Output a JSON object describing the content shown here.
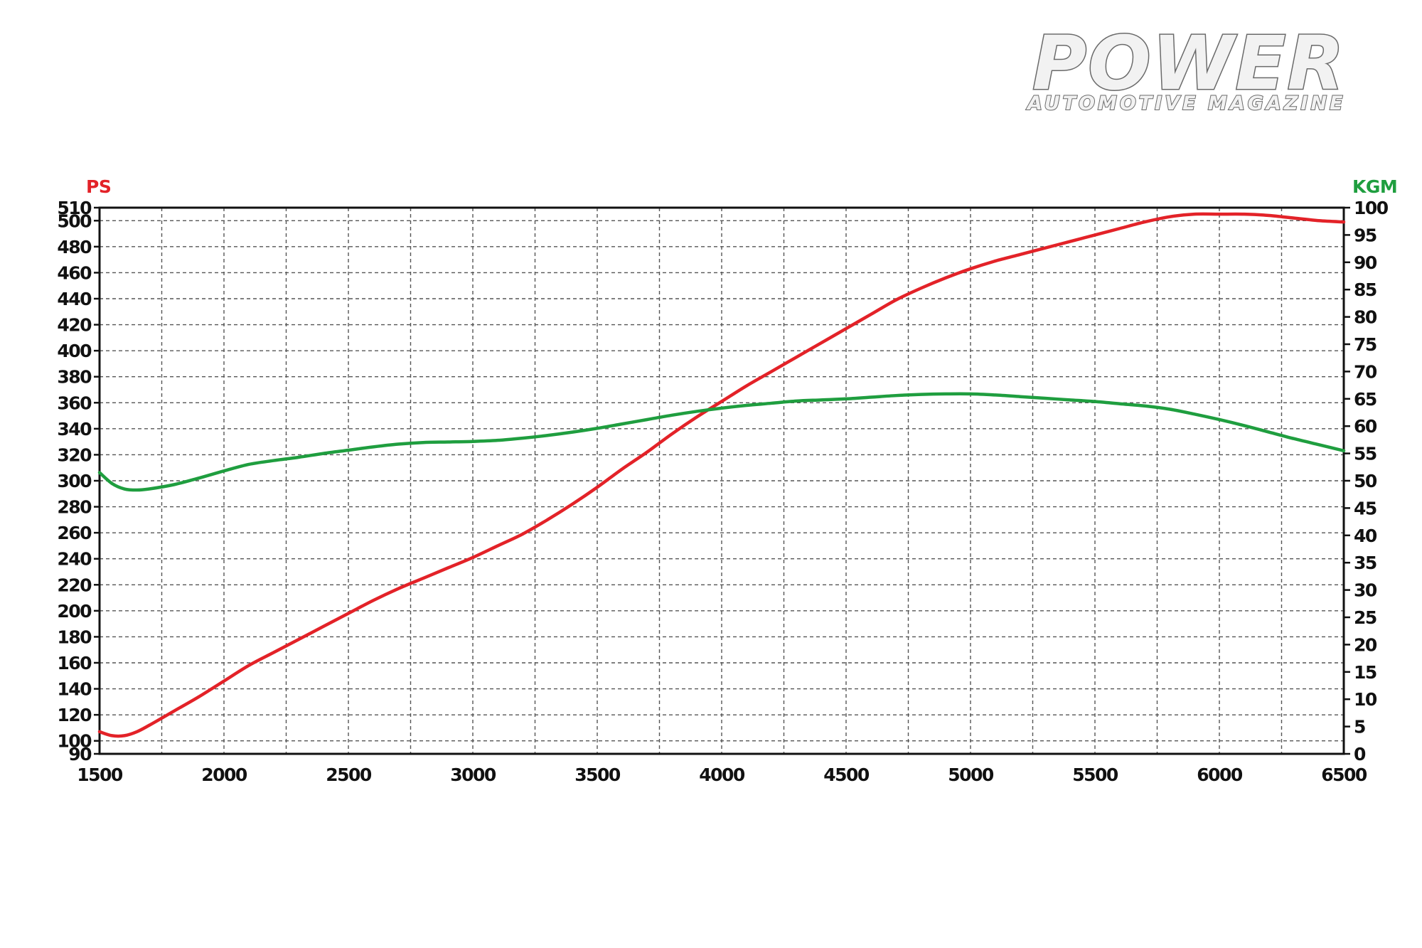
{
  "logo": {
    "name": "POWER",
    "tagline": "AUTOMOTIVE MAGAZINE"
  },
  "chart_data": {
    "type": "line",
    "title": "",
    "xlabel": "",
    "ylabel_left": "PS",
    "ylabel_right": "KGM",
    "xlim": [
      1500,
      6500
    ],
    "x_ticks": [
      1500,
      2000,
      2500,
      3000,
      3500,
      4000,
      4500,
      5000,
      5500,
      6000,
      6500
    ],
    "ylim_left": [
      90,
      510
    ],
    "y_ticks_left": [
      90,
      100,
      120,
      140,
      160,
      180,
      200,
      220,
      240,
      260,
      280,
      300,
      320,
      340,
      360,
      380,
      400,
      420,
      440,
      460,
      480,
      500,
      510
    ],
    "ylim_right": [
      0,
      100
    ],
    "y_ticks_right": [
      0,
      5,
      10,
      15,
      20,
      25,
      30,
      35,
      40,
      45,
      50,
      55,
      60,
      65,
      70,
      75,
      80,
      85,
      90,
      95,
      100
    ],
    "grid": true,
    "colors": {
      "ps": "#e32228",
      "kgm": "#1f9e3f",
      "grid": "#555555",
      "axis": "#111111"
    },
    "series": [
      {
        "axis": "left",
        "color": "#e32228",
        "x": [
          1500,
          1550,
          1600,
          1650,
          1700,
          1800,
          1900,
          2000,
          2100,
          2200,
          2300,
          2400,
          2500,
          2600,
          2700,
          2800,
          2900,
          3000,
          3100,
          3200,
          3300,
          3400,
          3500,
          3600,
          3700,
          3800,
          3900,
          4000,
          4100,
          4200,
          4300,
          4400,
          4500,
          4600,
          4700,
          4800,
          4900,
          5000,
          5100,
          5200,
          5300,
          5400,
          5500,
          5600,
          5700,
          5800,
          5900,
          6000,
          6100,
          6200,
          6300,
          6400,
          6500
        ],
        "values": [
          107,
          104,
          104,
          107,
          112,
          123,
          134,
          146,
          158,
          168,
          178,
          188,
          198,
          208,
          217,
          225,
          233,
          241,
          250,
          259,
          270,
          282,
          295,
          309,
          322,
          336,
          349,
          361,
          373,
          384,
          395,
          406,
          417,
          428,
          439,
          448,
          456,
          463,
          469,
          474,
          479,
          484,
          489,
          494,
          499,
          503,
          505,
          505,
          505,
          504,
          502,
          500,
          499
        ]
      },
      {
        "axis": "right",
        "color": "#1f9e3f",
        "x": [
          1500,
          1550,
          1600,
          1650,
          1700,
          1800,
          1900,
          2000,
          2100,
          2200,
          2300,
          2400,
          2500,
          2600,
          2700,
          2800,
          2900,
          3000,
          3100,
          3200,
          3300,
          3400,
          3500,
          3600,
          3700,
          3800,
          3900,
          4000,
          4100,
          4200,
          4300,
          4400,
          4500,
          4600,
          4700,
          4800,
          4900,
          5000,
          5100,
          5200,
          5300,
          5400,
          5500,
          5600,
          5700,
          5800,
          5900,
          6000,
          6100,
          6200,
          6300,
          6400,
          6500
        ],
        "values": [
          51.5,
          49.5,
          48.5,
          48.3,
          48.5,
          49.3,
          50.5,
          51.8,
          53.0,
          53.7,
          54.3,
          55.0,
          55.6,
          56.2,
          56.7,
          57.0,
          57.1,
          57.2,
          57.4,
          57.8,
          58.3,
          58.9,
          59.6,
          60.4,
          61.2,
          62.0,
          62.7,
          63.3,
          63.8,
          64.2,
          64.6,
          64.8,
          65.0,
          65.3,
          65.6,
          65.8,
          65.9,
          65.9,
          65.7,
          65.4,
          65.1,
          64.8,
          64.5,
          64.1,
          63.7,
          63.1,
          62.2,
          61.2,
          60.1,
          58.9,
          57.7,
          56.6,
          55.5
        ]
      }
    ]
  }
}
